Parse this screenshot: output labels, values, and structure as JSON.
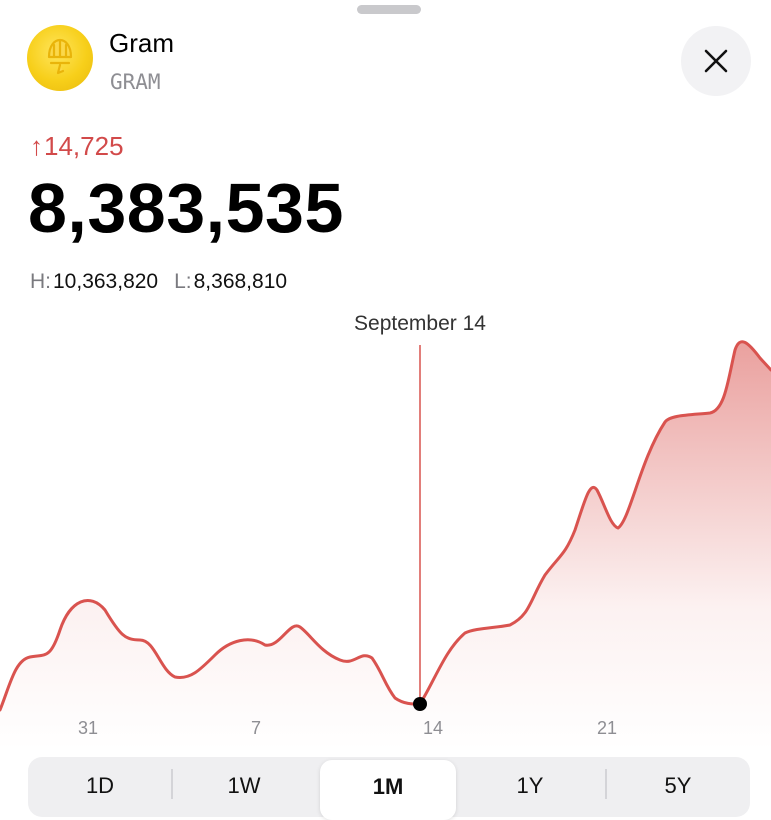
{
  "coin": {
    "name": "Gram",
    "ticker": "GRAM"
  },
  "stats": {
    "change": "14,725",
    "price": "8,383,535",
    "high_label": "H:",
    "high": "10,363,820",
    "low_label": "L:",
    "low": "8,368,810"
  },
  "chart_data": {
    "type": "area",
    "selected_label": "September 14",
    "x_ticks": [
      "31",
      "7",
      "14",
      "21"
    ],
    "color": "#d9534f"
  },
  "tabs": [
    {
      "label": "1D"
    },
    {
      "label": "1W"
    },
    {
      "label": "1M",
      "active": true
    },
    {
      "label": "1Y"
    },
    {
      "label": "5Y"
    }
  ]
}
